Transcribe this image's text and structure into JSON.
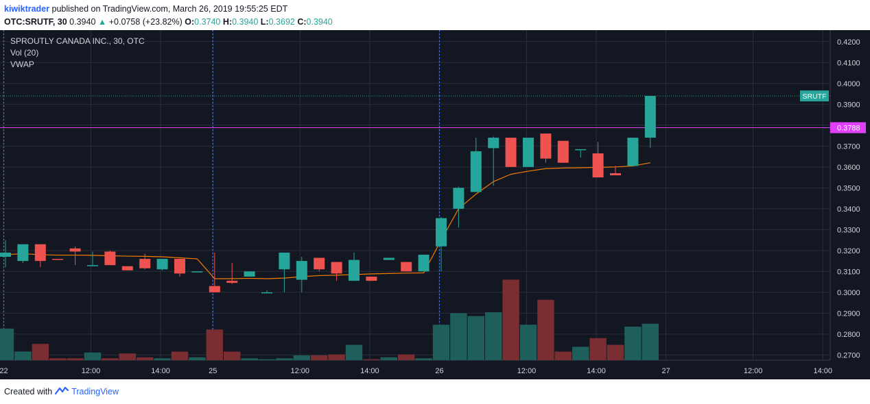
{
  "header": {
    "author": "kiwiktrader",
    "published": "published on TradingView.com, March 26, 2019 19:55:25 EDT",
    "symbol": "OTC:SRUTF, 30",
    "last": "0.3940",
    "change": "+0.0758 (+23.82%)",
    "o_label": "O:",
    "o_value": "0.3740",
    "h_label": "H:",
    "h_value": "0.3940",
    "l_label": "L:",
    "l_value": "0.3692",
    "c_label": "C:",
    "c_value": "0.3940"
  },
  "legend": {
    "title": "SPROUTLY CANADA INC., 30, OTC",
    "vol": "Vol (20)",
    "vwap": "VWAP"
  },
  "footer": {
    "created_with": "Created with",
    "brand": "TradingView"
  },
  "colors": {
    "background": "#131722",
    "grid": "#2a2e39",
    "up": "#26a69a",
    "down": "#ef5350",
    "vol_up": "#1f5f5b",
    "vol_down": "#7a2e31",
    "vwap": "#f57c00",
    "magenta": "#e040fb",
    "price_line": "#26a69a",
    "session": "#4f7cff"
  },
  "chart_data": {
    "type": "candlestick",
    "title": "SPROUTLY CANADA INC., 30, OTC",
    "ylim": [
      0.2675,
      0.4255
    ],
    "y_ticks": [
      "0.4200",
      "0.4100",
      "0.4000",
      "0.3900",
      "0.3800",
      "0.3700",
      "0.3600",
      "0.3500",
      "0.3400",
      "0.3300",
      "0.3200",
      "0.3100",
      "0.3000",
      "0.2900",
      "0.2800",
      "0.2700"
    ],
    "x_ticks": [
      {
        "label": "22",
        "idx": -0.1
      },
      {
        "label": "12:00",
        "idx": 4.9
      },
      {
        "label": "14:00",
        "idx": 8.9
      },
      {
        "label": "25",
        "idx": 11.9
      },
      {
        "label": "12:00",
        "idx": 16.9
      },
      {
        "label": "14:00",
        "idx": 20.9
      },
      {
        "label": "26",
        "idx": 24.9
      },
      {
        "label": "12:00",
        "idx": 29.9
      },
      {
        "label": "14:00",
        "idx": 33.9
      },
      {
        "label": "27",
        "idx": 37.9
      },
      {
        "label": "12:00",
        "idx": 42.9
      },
      {
        "label": "14:00",
        "idx": 46.9
      }
    ],
    "session_breaks": [
      -0.1,
      11.9,
      24.9
    ],
    "price_label": {
      "text": "SRUTF",
      "value": 0.394
    },
    "hline": {
      "text": "0.3788",
      "value": 0.3788
    },
    "candles": [
      {
        "o": 0.317,
        "h": 0.325,
        "l": 0.312,
        "c": 0.319
      },
      {
        "o": 0.315,
        "h": 0.323,
        "l": 0.314,
        "c": 0.323
      },
      {
        "o": 0.323,
        "h": 0.323,
        "l": 0.312,
        "c": 0.315
      },
      {
        "o": 0.316,
        "h": 0.316,
        "l": 0.3155,
        "c": 0.3158
      },
      {
        "o": 0.321,
        "h": 0.322,
        "l": 0.313,
        "c": 0.3195
      },
      {
        "o": 0.3125,
        "h": 0.3195,
        "l": 0.3125,
        "c": 0.313
      },
      {
        "o": 0.3195,
        "h": 0.32,
        "l": 0.313,
        "c": 0.313
      },
      {
        "o": 0.3125,
        "h": 0.3125,
        "l": 0.3105,
        "c": 0.3105
      },
      {
        "o": 0.316,
        "h": 0.3185,
        "l": 0.311,
        "c": 0.3115
      },
      {
        "o": 0.311,
        "h": 0.316,
        "l": 0.3105,
        "c": 0.316
      },
      {
        "o": 0.316,
        "h": 0.316,
        "l": 0.3075,
        "c": 0.309
      },
      {
        "o": 0.31,
        "h": 0.31,
        "l": 0.31,
        "c": 0.31
      },
      {
        "o": 0.303,
        "h": 0.319,
        "l": 0.3,
        "c": 0.3
      },
      {
        "o": 0.3055,
        "h": 0.314,
        "l": 0.304,
        "c": 0.3045
      },
      {
        "o": 0.3075,
        "h": 0.31,
        "l": 0.3075,
        "c": 0.31
      },
      {
        "o": 0.3,
        "h": 0.301,
        "l": 0.3,
        "c": 0.3
      },
      {
        "o": 0.311,
        "h": 0.319,
        "l": 0.3,
        "c": 0.319
      },
      {
        "o": 0.306,
        "h": 0.317,
        "l": 0.3,
        "c": 0.315
      },
      {
        "o": 0.3165,
        "h": 0.3165,
        "l": 0.31,
        "c": 0.311
      },
      {
        "o": 0.3145,
        "h": 0.3145,
        "l": 0.3055,
        "c": 0.309
      },
      {
        "o": 0.3055,
        "h": 0.319,
        "l": 0.3055,
        "c": 0.3155
      },
      {
        "o": 0.3075,
        "h": 0.3075,
        "l": 0.3055,
        "c": 0.3055
      },
      {
        "o": 0.3155,
        "h": 0.3165,
        "l": 0.3155,
        "c": 0.3165
      },
      {
        "o": 0.3145,
        "h": 0.3145,
        "l": 0.31,
        "c": 0.31
      },
      {
        "o": 0.31,
        "h": 0.318,
        "l": 0.31,
        "c": 0.318
      },
      {
        "o": 0.322,
        "h": 0.336,
        "l": 0.31,
        "c": 0.3355
      },
      {
        "o": 0.34,
        "h": 0.3505,
        "l": 0.331,
        "c": 0.35
      },
      {
        "o": 0.348,
        "h": 0.374,
        "l": 0.348,
        "c": 0.3675
      },
      {
        "o": 0.369,
        "h": 0.3745,
        "l": 0.351,
        "c": 0.374
      },
      {
        "o": 0.374,
        "h": 0.374,
        "l": 0.36,
        "c": 0.36
      },
      {
        "o": 0.36,
        "h": 0.374,
        "l": 0.36,
        "c": 0.374
      },
      {
        "o": 0.376,
        "h": 0.376,
        "l": 0.362,
        "c": 0.364
      },
      {
        "o": 0.3725,
        "h": 0.3725,
        "l": 0.362,
        "c": 0.362
      },
      {
        "o": 0.368,
        "h": 0.3685,
        "l": 0.3645,
        "c": 0.3685
      },
      {
        "o": 0.3665,
        "h": 0.372,
        "l": 0.355,
        "c": 0.355
      },
      {
        "o": 0.357,
        "h": 0.3605,
        "l": 0.356,
        "c": 0.356
      },
      {
        "o": 0.3605,
        "h": 0.374,
        "l": 0.3605,
        "c": 0.374
      },
      {
        "o": 0.374,
        "h": 0.394,
        "l": 0.3692,
        "c": 0.394
      }
    ],
    "volume_scale_max": 1.0,
    "volumes": [
      0.33,
      0.09,
      0.17,
      0.02,
      0.02,
      0.08,
      0.02,
      0.07,
      0.03,
      0.02,
      0.09,
      0.03,
      0.32,
      0.09,
      0.02,
      0.01,
      0.02,
      0.05,
      0.05,
      0.06,
      0.16,
      0.01,
      0.03,
      0.06,
      0.02,
      0.37,
      0.49,
      0.46,
      0.5,
      0.84,
      0.37,
      0.63,
      0.09,
      0.14,
      0.23,
      0.16,
      0.35,
      0.38
    ],
    "vwap": [
      0.318,
      0.3185,
      0.318,
      0.3178,
      0.3178,
      0.3177,
      0.3175,
      0.3173,
      0.3172,
      0.317,
      0.3165,
      0.316,
      0.3065,
      0.3065,
      0.3067,
      0.3065,
      0.3068,
      0.3075,
      0.308,
      0.3082,
      0.3085,
      0.3088,
      0.309,
      0.3092,
      0.3093,
      0.325,
      0.34,
      0.347,
      0.353,
      0.3565,
      0.358,
      0.3592,
      0.3595,
      0.3596,
      0.3598,
      0.36,
      0.3605,
      0.362
    ]
  }
}
